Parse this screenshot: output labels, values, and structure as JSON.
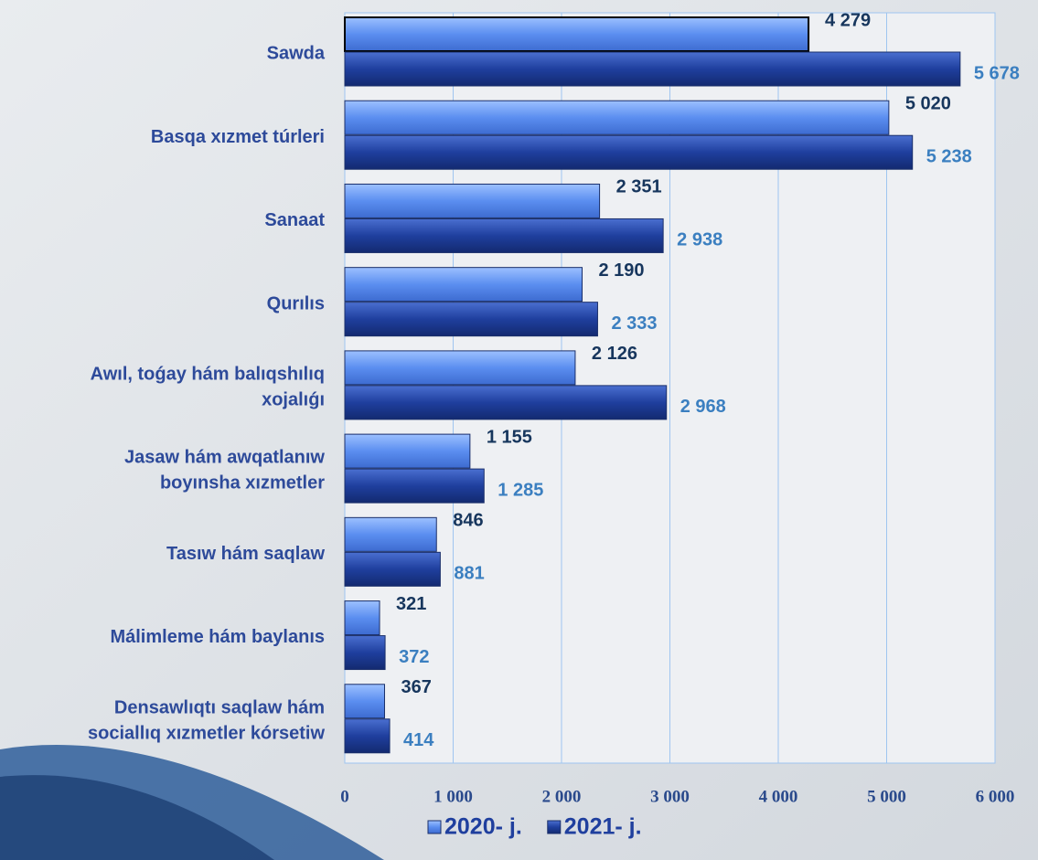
{
  "chart_data": {
    "type": "bar",
    "orientation": "horizontal",
    "categories": [
      "Sawda",
      "Basqa xızmet túrleri",
      "Sanaat",
      "Qurılıs",
      "Awıl, toǵay hám balıqshılıq\nxojalıǵı",
      "Jasaw hám awqatlanıw\nboyınsha xızmetler",
      "Tasıw hám saqlaw",
      "Málimleme hám baylanıs",
      "Densawlıqtı saqlaw hám\nsociallıq xızmetler kórsetiw"
    ],
    "series": [
      {
        "name": "2020- j.",
        "color": "#5b8ef0",
        "values": [
          4279,
          5020,
          2351,
          2190,
          2126,
          1155,
          846,
          321,
          367
        ],
        "value_labels": [
          "4 279",
          "5 020",
          "2 351",
          "2 190",
          "2 126",
          "1 155",
          "846",
          "321",
          "367"
        ]
      },
      {
        "name": "2021- j.",
        "color": "#1f3f9e",
        "values": [
          5678,
          5238,
          2938,
          2333,
          2968,
          1285,
          881,
          372,
          414
        ],
        "value_labels": [
          "5 678",
          "5 238",
          "2 938",
          "2 333",
          "2 968",
          "1 285",
          "881",
          "372",
          "414"
        ]
      }
    ],
    "xlim": [
      0,
      6000
    ],
    "xticks": [
      0,
      {
        "value": 1000,
        "label": "1 000"
      },
      {
        "value": 2000,
        "label": "2 000"
      },
      {
        "value": 3000,
        "label": "3 000"
      },
      {
        "value": 4000,
        "label": "4 000"
      },
      {
        "value": 5000,
        "label": "5 000"
      },
      {
        "value": 6000,
        "label": "6 000"
      }
    ],
    "grid": true,
    "legend": "bottom"
  }
}
